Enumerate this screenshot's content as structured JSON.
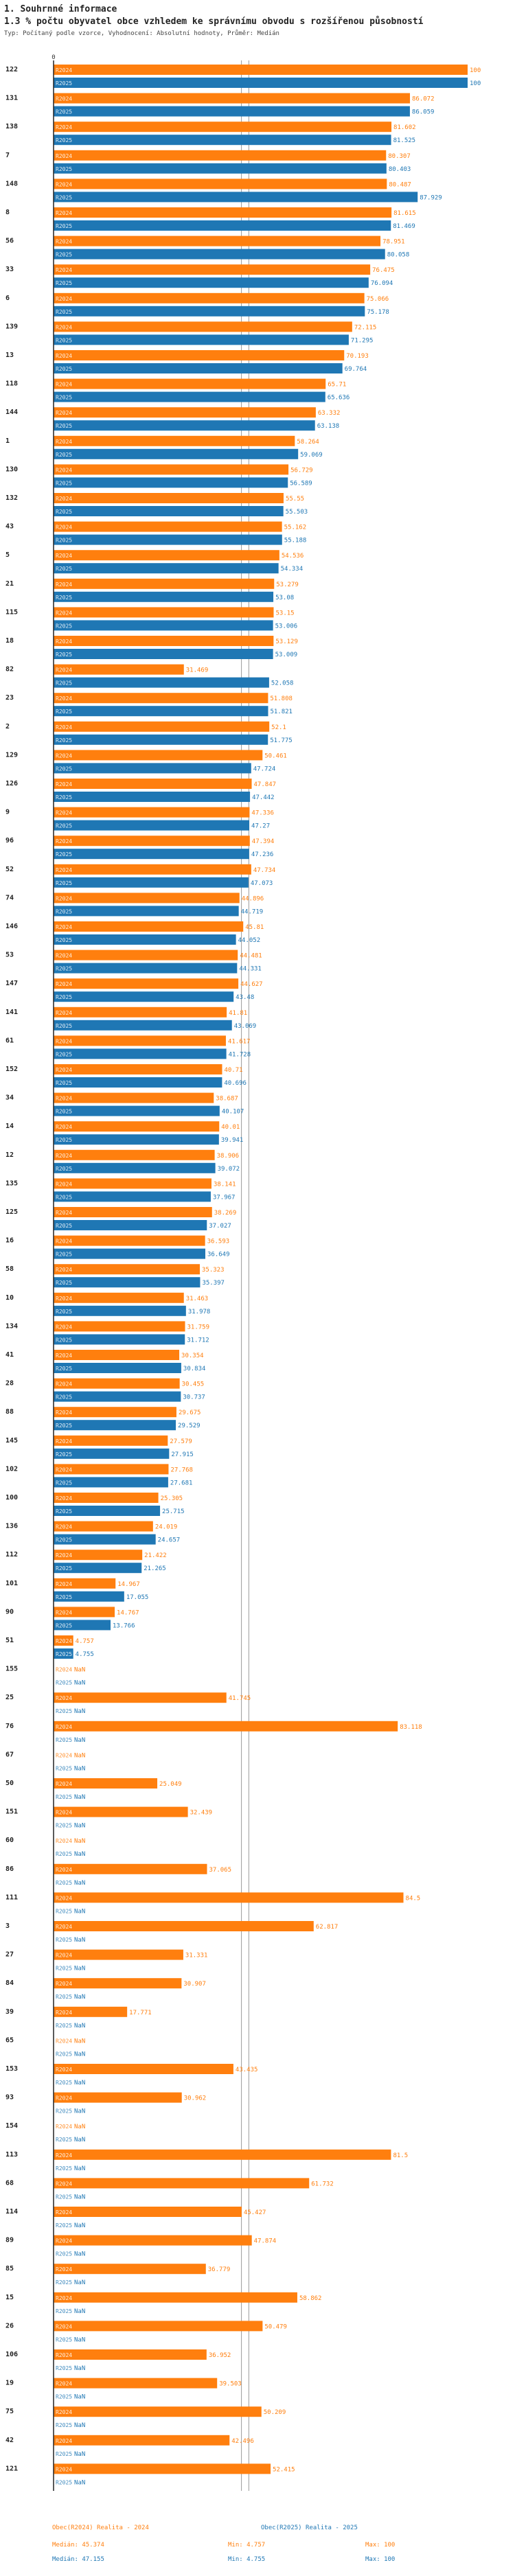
{
  "header": {
    "section": "1. Souhrnné informace",
    "title": "1.3 % počtu obyvatel obce vzhledem ke správnímu obvodu s rozšířenou působností",
    "subtitle": "Typ: Počítaný podle vzorce, Vyhodnocení: Absolutní hodnoty, Průměr: Medián"
  },
  "colors": {
    "r2024": "#ff7f0e",
    "r2025": "#1f77b4",
    "axis": "#222222",
    "median": "#999999"
  },
  "chart_data": {
    "type": "bar",
    "orientation": "horizontal",
    "title": "1.3 % počtu obyvatel obce vzhledem ke správnímu obvodu s rozšířenou působností",
    "xlim": [
      0,
      100
    ],
    "axis_tick": "0",
    "series_labels": [
      "R2024",
      "R2025"
    ],
    "missing_label": "NaN",
    "categories": [
      "122",
      "131",
      "138",
      "7",
      "148",
      "8",
      "56",
      "33",
      "6",
      "139",
      "13",
      "118",
      "144",
      "1",
      "130",
      "132",
      "43",
      "5",
      "21",
      "115",
      "18",
      "82",
      "23",
      "2",
      "129",
      "126",
      "9",
      "96",
      "52",
      "74",
      "146",
      "53",
      "147",
      "141",
      "61",
      "152",
      "34",
      "14",
      "12",
      "135",
      "125",
      "16",
      "58",
      "10",
      "134",
      "41",
      "28",
      "88",
      "145",
      "102",
      "100",
      "136",
      "112",
      "101",
      "90",
      "51",
      "155",
      "25",
      "76",
      "67",
      "50",
      "151",
      "60",
      "86",
      "111",
      "3",
      "27",
      "84",
      "39",
      "65",
      "153",
      "93",
      "154",
      "113",
      "68",
      "114",
      "89",
      "85",
      "15",
      "26",
      "106",
      "19",
      "75",
      "42",
      "121"
    ],
    "series": [
      {
        "name": "Obec(R2024) Realita - 2024",
        "values": [
          100,
          86.072,
          81.602,
          80.307,
          80.487,
          81.615,
          78.951,
          76.475,
          75.066,
          72.115,
          70.193,
          65.71,
          63.332,
          58.264,
          56.729,
          55.55,
          55.162,
          54.536,
          53.279,
          53.15,
          53.129,
          31.469,
          51.808,
          52.1,
          50.461,
          47.847,
          47.336,
          47.394,
          47.734,
          44.896,
          45.81,
          44.481,
          44.627,
          41.81,
          41.617,
          40.71,
          38.687,
          40.01,
          38.906,
          38.141,
          38.269,
          36.593,
          35.323,
          31.463,
          31.759,
          30.354,
          30.455,
          29.675,
          27.579,
          27.768,
          25.305,
          24.019,
          21.422,
          14.967,
          14.767,
          4.757,
          null,
          41.745,
          83.118,
          null,
          25.049,
          32.439,
          null,
          37.065,
          84.5,
          62.817,
          31.331,
          30.907,
          17.771,
          null,
          43.435,
          30.962,
          null,
          81.5,
          61.732,
          45.427,
          47.874,
          36.779,
          58.862,
          50.479,
          36.952,
          39.503,
          50.209,
          42.496,
          52.415
        ]
      },
      {
        "name": "Obec(R2025) Realita - 2025",
        "values": [
          100,
          86.059,
          81.525,
          80.403,
          87.929,
          81.469,
          80.058,
          76.094,
          75.178,
          71.295,
          69.764,
          65.636,
          63.138,
          59.069,
          56.589,
          55.503,
          55.188,
          54.334,
          53.08,
          53.006,
          53.009,
          52.058,
          51.821,
          51.775,
          47.724,
          47.442,
          47.27,
          47.236,
          47.073,
          44.719,
          44.052,
          44.331,
          43.48,
          43.069,
          41.728,
          40.696,
          40.107,
          39.941,
          39.072,
          37.967,
          37.027,
          36.649,
          35.397,
          31.978,
          31.712,
          30.834,
          30.737,
          29.529,
          27.915,
          27.681,
          25.715,
          24.657,
          21.265,
          17.055,
          13.766,
          4.755,
          null,
          null,
          null,
          null,
          null,
          null,
          null,
          null,
          null,
          null,
          null,
          null,
          null,
          null,
          null,
          null,
          null,
          null,
          null,
          null,
          null,
          null,
          null,
          null,
          null,
          null,
          null,
          null,
          null
        ]
      }
    ],
    "legend": [
      {
        "name": "Obec(R2024) Realita - 2024",
        "median_label": "Medián: 45.374",
        "min_label": "Min: 4.757",
        "max_label": "Max: 100"
      },
      {
        "name": "Obec(R2025) Realita - 2025",
        "median_label": "Medián: 47.155",
        "min_label": "Min: 4.755",
        "max_label": "Max: 100"
      }
    ],
    "medians": [
      45.374,
      47.155
    ]
  }
}
